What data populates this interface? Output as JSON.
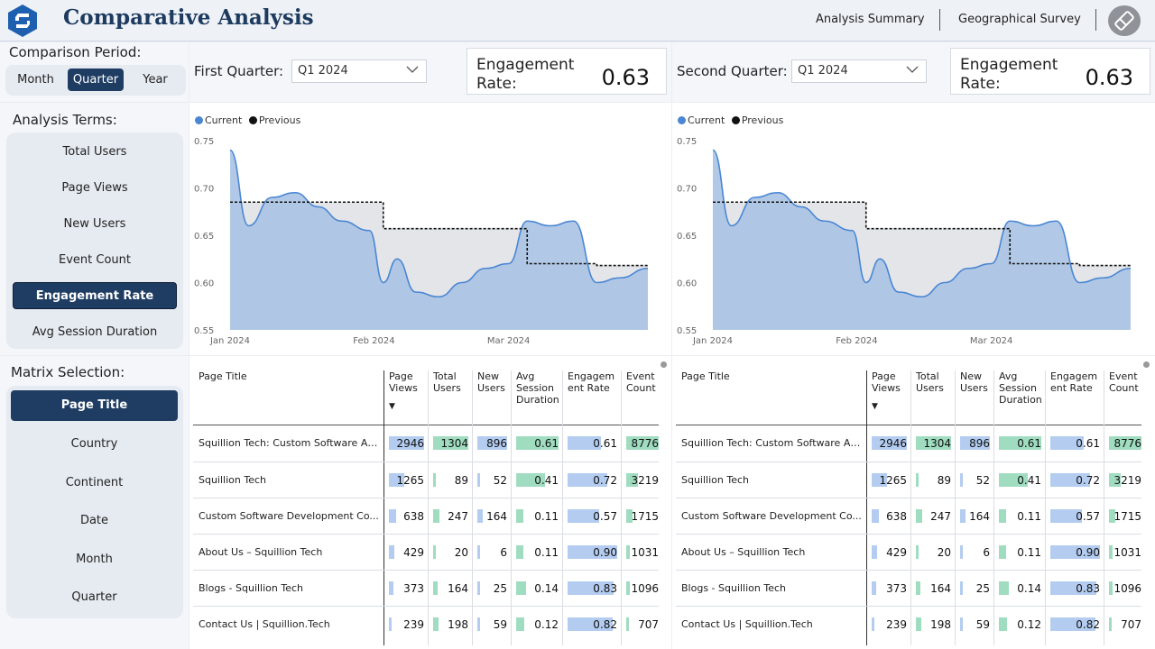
{
  "header": {
    "title": "Comparative Analysis",
    "nav": [
      "Analysis Summary",
      "Geographical Survey"
    ]
  },
  "period": {
    "label": "Comparison Period:",
    "options": [
      "Month",
      "Quarter",
      "Year"
    ],
    "selected": "Quarter"
  },
  "terms": {
    "label": "Analysis Terms:",
    "items": [
      "Total Users",
      "Page Views",
      "New Users",
      "Event Count",
      "Engagement Rate",
      "Avg Session Duration"
    ],
    "selected": "Engagement Rate"
  },
  "matrix": {
    "label": "Matrix Selection:",
    "items": [
      "Page Title",
      "Country",
      "Continent",
      "Date",
      "Month",
      "Quarter"
    ],
    "selected": "Page Title"
  },
  "compare": [
    {
      "quarter_label": "First Quarter:",
      "quarter_value": "Q1 2024",
      "kpi_title": "Engagement Rate:",
      "kpi_value": "0.63"
    },
    {
      "quarter_label": "Second Quarter:",
      "quarter_value": "Q1 2024",
      "kpi_title": "Engagement Rate:",
      "kpi_value": "0.63"
    }
  ],
  "colors": {
    "brand": "#1f3d63",
    "current_line": "#4a86d4",
    "current_fill": "#a9c3e3",
    "previous_line": "#111111",
    "previous_fill": "#e4e5e8",
    "bar_blue": "#b3ccf0",
    "bar_green": "#9fdcc0"
  },
  "chart_data": [
    {
      "type": "area",
      "legend": [
        "Current",
        "Previous"
      ],
      "legend_placement": "top-left",
      "ylim": [
        0.55,
        0.75
      ],
      "yticks": [
        "0.75",
        "0.70",
        "0.65",
        "0.60",
        "0.55"
      ],
      "xticks": [
        "Jan 2024",
        "Feb 2024",
        "Mar 2024"
      ],
      "x": [
        "2024-01-01",
        "2024-01-05",
        "2024-01-10",
        "2024-01-15",
        "2024-01-20",
        "2024-01-25",
        "2024-01-31",
        "2024-02-03",
        "2024-02-06",
        "2024-02-10",
        "2024-02-15",
        "2024-02-20",
        "2024-02-25",
        "2024-03-01",
        "2024-03-05",
        "2024-03-10",
        "2024-03-15",
        "2024-03-20",
        "2024-03-25",
        "2024-03-31"
      ],
      "series": [
        {
          "name": "Current",
          "values": [
            0.74,
            0.66,
            0.69,
            0.695,
            0.68,
            0.665,
            0.655,
            0.6,
            0.625,
            0.59,
            0.585,
            0.6,
            0.615,
            0.62,
            0.665,
            0.66,
            0.665,
            0.6,
            0.605,
            0.615
          ]
        },
        {
          "name": "Previous",
          "values": [
            0.685,
            0.685,
            0.685,
            0.685,
            0.685,
            0.685,
            0.685,
            0.657,
            0.657,
            0.657,
            0.657,
            0.657,
            0.657,
            0.657,
            0.62,
            0.62,
            0.62,
            0.618,
            0.618,
            0.618
          ]
        }
      ]
    },
    {
      "type": "area",
      "legend": [
        "Current",
        "Previous"
      ],
      "legend_placement": "top-left",
      "ylim": [
        0.55,
        0.75
      ],
      "yticks": [
        "0.75",
        "0.70",
        "0.65",
        "0.60",
        "0.55"
      ],
      "xticks": [
        "Jan 2024",
        "Feb 2024",
        "Mar 2024"
      ],
      "x": [
        "2024-01-01",
        "2024-01-05",
        "2024-01-10",
        "2024-01-15",
        "2024-01-20",
        "2024-01-25",
        "2024-01-31",
        "2024-02-03",
        "2024-02-06",
        "2024-02-10",
        "2024-02-15",
        "2024-02-20",
        "2024-02-25",
        "2024-03-01",
        "2024-03-05",
        "2024-03-10",
        "2024-03-15",
        "2024-03-20",
        "2024-03-25",
        "2024-03-31"
      ],
      "series": [
        {
          "name": "Current",
          "values": [
            0.74,
            0.66,
            0.69,
            0.695,
            0.68,
            0.665,
            0.655,
            0.6,
            0.625,
            0.59,
            0.585,
            0.6,
            0.615,
            0.62,
            0.665,
            0.66,
            0.665,
            0.6,
            0.605,
            0.615
          ]
        },
        {
          "name": "Previous",
          "values": [
            0.685,
            0.685,
            0.685,
            0.685,
            0.685,
            0.685,
            0.685,
            0.657,
            0.657,
            0.657,
            0.657,
            0.657,
            0.657,
            0.657,
            0.62,
            0.62,
            0.62,
            0.618,
            0.618,
            0.618
          ]
        }
      ]
    }
  ],
  "table": {
    "headers": [
      "Page Title",
      "Page Views",
      "Total Users",
      "New Users",
      "Avg Session Duration",
      "Engagem ent Rate",
      "Event Count"
    ],
    "sort_indicator": "▼",
    "rows": [
      [
        "Squillion Tech: Custom Software An...",
        "2946",
        "1304",
        "896",
        "0.61",
        "0.61",
        "8776"
      ],
      [
        "Squillion Tech",
        "1265",
        "89",
        "52",
        "0.41",
        "0.72",
        "3219"
      ],
      [
        "Custom Software Development Co...",
        "638",
        "247",
        "164",
        "0.11",
        "0.57",
        "1715"
      ],
      [
        "About Us – Squillion Tech",
        "429",
        "20",
        "6",
        "0.11",
        "0.90",
        "1031"
      ],
      [
        "Blogs - Squillion Tech",
        "373",
        "164",
        "25",
        "0.14",
        "0.83",
        "1096"
      ],
      [
        "Contact Us | Squillion.Tech",
        "239",
        "198",
        "59",
        "0.12",
        "0.82",
        "707"
      ]
    ],
    "bar_max": [
      2946,
      1304,
      896,
      0.61,
      0.9,
      8776
    ]
  }
}
